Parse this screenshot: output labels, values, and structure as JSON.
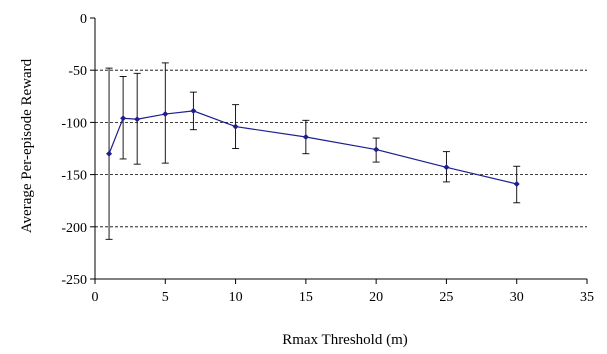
{
  "chart_data": {
    "type": "line",
    "title": "",
    "xlabel": "Rmax Threshold (m)",
    "ylabel": "Average Per-episode Reward",
    "xlim": [
      0,
      35
    ],
    "ylim": [
      -250,
      0
    ],
    "x_ticks": [
      0,
      5,
      10,
      15,
      20,
      25,
      30,
      35
    ],
    "y_ticks": [
      0,
      -50,
      -100,
      -150,
      -200,
      -250
    ],
    "grid": "horizontal dashed",
    "legend": "none",
    "series": [
      {
        "color": "#1f1f8f",
        "points": [
          {
            "x": 1,
            "y": -130,
            "err_low": -212,
            "err_high": -48
          },
          {
            "x": 2,
            "y": -96,
            "err_low": -135,
            "err_high": -56
          },
          {
            "x": 3,
            "y": -97,
            "err_low": -140,
            "err_high": -53
          },
          {
            "x": 5,
            "y": -92,
            "err_low": -139,
            "err_high": -43
          },
          {
            "x": 7,
            "y": -89,
            "err_low": -107,
            "err_high": -71
          },
          {
            "x": 10,
            "y": -104,
            "err_low": -125,
            "err_high": -83
          },
          {
            "x": 15,
            "y": -114,
            "err_low": -130,
            "err_high": -98
          },
          {
            "x": 20,
            "y": -126,
            "err_low": -138,
            "err_high": -115
          },
          {
            "x": 25,
            "y": -143,
            "err_low": -157,
            "err_high": -128
          },
          {
            "x": 30,
            "y": -159,
            "err_low": -177,
            "err_high": -142
          }
        ]
      }
    ]
  }
}
